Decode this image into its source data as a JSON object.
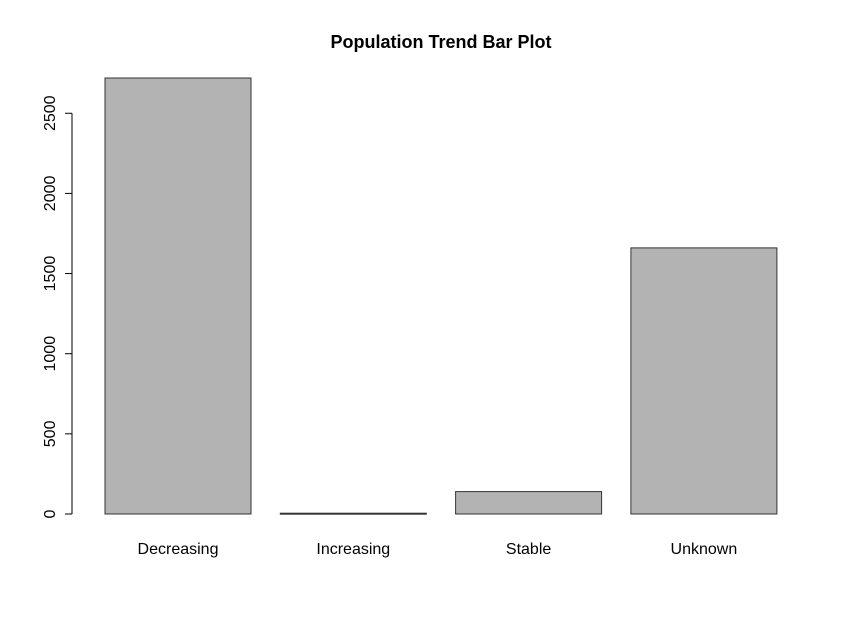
{
  "chart_data": {
    "type": "bar",
    "title": "Population Trend Bar Plot",
    "xlabel": "",
    "ylabel": "",
    "categories": [
      "Decreasing",
      "Increasing",
      "Stable",
      "Unknown"
    ],
    "values": [
      2720,
      5,
      140,
      1660
    ],
    "ylim": [
      0,
      2720
    ],
    "yticks": [
      0,
      500,
      1000,
      1500,
      2000,
      2500
    ],
    "bar_color": "#b3b3b3",
    "bar_border_color": "#333333",
    "grid": false,
    "legend": "none"
  }
}
